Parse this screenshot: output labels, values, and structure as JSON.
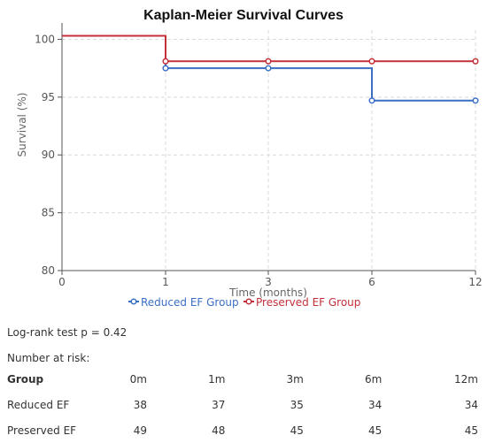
{
  "chart_data": {
    "type": "line",
    "step": true,
    "title": "Kaplan-Meier Survival Curves",
    "xlabel": "Time (months)",
    "ylabel": "Survival (%)",
    "x_ticks": [
      0,
      1,
      3,
      6,
      12
    ],
    "x_tick_labels": [
      "0",
      "1",
      "3",
      "6",
      "12"
    ],
    "y_ticks": [
      80,
      85,
      90,
      95,
      100
    ],
    "ylim": [
      80,
      100.8
    ],
    "grid": true,
    "legend": "bottom-center",
    "series": [
      {
        "name": "Reduced EF Group",
        "color": "#3a6fc4",
        "x": [
          0,
          1,
          3,
          6,
          12
        ],
        "y": [
          100.3,
          97.5,
          97.5,
          94.7,
          94.7
        ]
      },
      {
        "name": "Preserved EF Group",
        "color": "#c4303a",
        "x": [
          0,
          1,
          3,
          6,
          12
        ],
        "y": [
          100.3,
          98.1,
          98.1,
          98.1,
          98.1
        ]
      }
    ]
  },
  "logrank_text": "Log-rank test p = 0.42",
  "risk_table": {
    "title": "Number at risk:",
    "group_header": "Group",
    "columns": [
      "0m",
      "1m",
      "3m",
      "6m",
      "12m"
    ],
    "rows": [
      {
        "label": "Reduced EF",
        "values": [
          "38",
          "37",
          "35",
          "34",
          "34"
        ]
      },
      {
        "label": "Preserved EF",
        "values": [
          "49",
          "48",
          "45",
          "45",
          "45"
        ]
      }
    ]
  }
}
